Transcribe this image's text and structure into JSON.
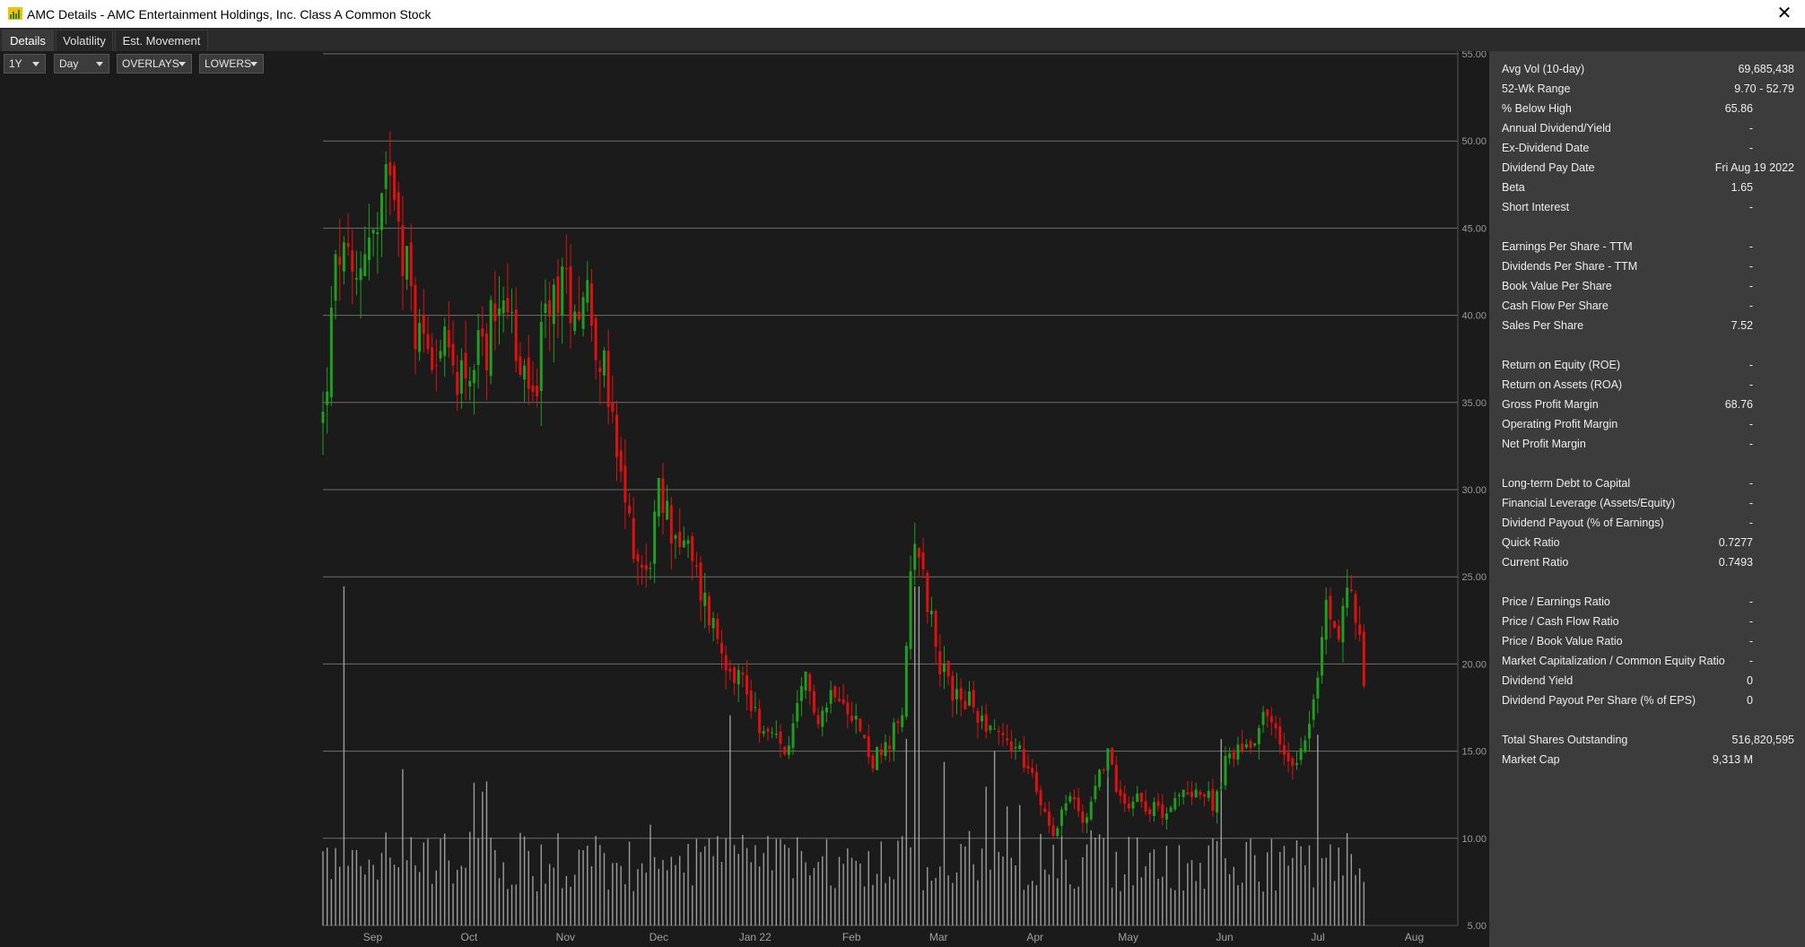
{
  "window": {
    "title": "AMC Details - AMC Entertainment Holdings, Inc. Class A Common Stock",
    "close_glyph": "✕",
    "icon": "chart-app-icon"
  },
  "tabs": [
    {
      "label": "Details",
      "active": true
    },
    {
      "label": "Volatility",
      "active": false
    },
    {
      "label": "Est. Movement",
      "active": false
    }
  ],
  "controls": {
    "range": "1Y",
    "interval": "Day",
    "overlays": "OVERLAYS",
    "lowers": "LOWERS"
  },
  "stats": [
    {
      "label": "Avg Vol (10-day)",
      "value": "69,685,438"
    },
    {
      "label": "52-Wk Range",
      "value": "9.70 - 52.79"
    },
    {
      "label": "% Below High",
      "value": "65.86"
    },
    {
      "label": "Annual Dividend/Yield",
      "value": "-"
    },
    {
      "label": "Ex-Dividend Date",
      "value": "-"
    },
    {
      "label": "Dividend Pay Date",
      "value": "Fri Aug 19 2022"
    },
    {
      "label": "Beta",
      "value": "1.65"
    },
    {
      "label": "Short Interest",
      "value": "-"
    },
    {
      "label": "Earnings Per Share - TTM",
      "value": "-"
    },
    {
      "label": "Dividends Per Share - TTM",
      "value": "-"
    },
    {
      "label": "Book Value Per Share",
      "value": "-"
    },
    {
      "label": "Cash Flow Per Share",
      "value": "-"
    },
    {
      "label": "Sales Per Share",
      "value": "7.52"
    },
    {
      "label": "Return on Equity (ROE)",
      "value": "-"
    },
    {
      "label": "Return on Assets (ROA)",
      "value": "-"
    },
    {
      "label": "Gross Profit Margin",
      "value": "68.76"
    },
    {
      "label": "Operating Profit Margin",
      "value": "-"
    },
    {
      "label": "Net Profit Margin",
      "value": "-"
    },
    {
      "label": "Long-term Debt to Capital",
      "value": "-"
    },
    {
      "label": "Financial Leverage (Assets/Equity)",
      "value": "-"
    },
    {
      "label": "Dividend Payout (% of Earnings)",
      "value": "-"
    },
    {
      "label": "Quick Ratio",
      "value": "0.7277"
    },
    {
      "label": "Current Ratio",
      "value": "0.7493"
    },
    {
      "label": "Price / Earnings Ratio",
      "value": "-"
    },
    {
      "label": "Price / Cash Flow Ratio",
      "value": "-"
    },
    {
      "label": "Price / Book Value Ratio",
      "value": "-"
    },
    {
      "label": "Market Capitalization / Common Equity Ratio",
      "value": "-"
    },
    {
      "label": "Dividend Yield",
      "value": "0"
    },
    {
      "label": "Dividend Payout Per Share (% of EPS)",
      "value": "0"
    },
    {
      "label": "Total Shares Outstanding",
      "value": "516,820,595"
    },
    {
      "label": "Market Cap",
      "value": "9,313 M"
    }
  ],
  "chart_data": {
    "type": "candlestick",
    "title": "",
    "ylim": [
      5,
      55
    ],
    "y_ticks": [
      "5.00",
      "10.00",
      "15.00",
      "20.00",
      "25.00",
      "30.00",
      "35.00",
      "40.00",
      "45.00",
      "50.00",
      "55.00"
    ],
    "y_tick_values": [
      5,
      10,
      15,
      20,
      25,
      30,
      35,
      40,
      45,
      50,
      55
    ],
    "x_tick_labels": [
      "Sep",
      "Oct",
      "Nov",
      "Dec",
      "Jan 22",
      "Feb",
      "Mar",
      "Apr",
      "May",
      "Jun",
      "Jul",
      "Aug"
    ],
    "x_tick_days": [
      16,
      47,
      78,
      108,
      139,
      170,
      198,
      229,
      259,
      290,
      320,
      351
    ],
    "day_range": [
      0,
      365
    ],
    "grid": "horizontal",
    "up_color": "#1f9e1f",
    "down_color": "#e01010",
    "volume_color": "#bdbdbd",
    "close_series": [
      {
        "day": 0,
        "close": 34.0
      },
      {
        "day": 5,
        "close": 44.0
      },
      {
        "day": 10,
        "close": 41.0
      },
      {
        "day": 14,
        "close": 45.0
      },
      {
        "day": 18,
        "close": 44.0
      },
      {
        "day": 22,
        "close": 50.0
      },
      {
        "day": 25,
        "close": 45.0
      },
      {
        "day": 30,
        "close": 39.0
      },
      {
        "day": 36,
        "close": 38.5
      },
      {
        "day": 42,
        "close": 37.0
      },
      {
        "day": 48,
        "close": 37.0
      },
      {
        "day": 52,
        "close": 38.0
      },
      {
        "day": 58,
        "close": 42.5
      },
      {
        "day": 63,
        "close": 36.5
      },
      {
        "day": 68,
        "close": 35.5
      },
      {
        "day": 72,
        "close": 40.0
      },
      {
        "day": 76,
        "close": 42.0
      },
      {
        "day": 80,
        "close": 41.0
      },
      {
        "day": 85,
        "close": 41.5
      },
      {
        "day": 90,
        "close": 37.0
      },
      {
        "day": 96,
        "close": 30.0
      },
      {
        "day": 100,
        "close": 27.0
      },
      {
        "day": 104,
        "close": 25.0
      },
      {
        "day": 108,
        "close": 29.5
      },
      {
        "day": 112,
        "close": 28.0
      },
      {
        "day": 117,
        "close": 26.5
      },
      {
        "day": 122,
        "close": 24.0
      },
      {
        "day": 128,
        "close": 21.0
      },
      {
        "day": 135,
        "close": 19.0
      },
      {
        "day": 142,
        "close": 16.0
      },
      {
        "day": 150,
        "close": 15.0
      },
      {
        "day": 155,
        "close": 19.0
      },
      {
        "day": 160,
        "close": 17.0
      },
      {
        "day": 165,
        "close": 19.0
      },
      {
        "day": 170,
        "close": 17.5
      },
      {
        "day": 176,
        "close": 14.5
      },
      {
        "day": 182,
        "close": 15.0
      },
      {
        "day": 187,
        "close": 18.0
      },
      {
        "day": 190,
        "close": 28.5
      },
      {
        "day": 194,
        "close": 24.0
      },
      {
        "day": 200,
        "close": 19.0
      },
      {
        "day": 206,
        "close": 18.0
      },
      {
        "day": 212,
        "close": 17.0
      },
      {
        "day": 218,
        "close": 16.0
      },
      {
        "day": 224,
        "close": 15.0
      },
      {
        "day": 230,
        "close": 12.5
      },
      {
        "day": 235,
        "close": 10.5
      },
      {
        "day": 240,
        "close": 12.5
      },
      {
        "day": 245,
        "close": 11.0
      },
      {
        "day": 252,
        "close": 15.0
      },
      {
        "day": 257,
        "close": 12.0
      },
      {
        "day": 262,
        "close": 12.5
      },
      {
        "day": 268,
        "close": 11.5
      },
      {
        "day": 274,
        "close": 12.0
      },
      {
        "day": 280,
        "close": 13.0
      },
      {
        "day": 286,
        "close": 12.0
      },
      {
        "day": 292,
        "close": 15.0
      },
      {
        "day": 298,
        "close": 15.5
      },
      {
        "day": 304,
        "close": 17.5
      },
      {
        "day": 308,
        "close": 15.0
      },
      {
        "day": 312,
        "close": 14.5
      },
      {
        "day": 316,
        "close": 16.0
      },
      {
        "day": 320,
        "close": 19.0
      },
      {
        "day": 323,
        "close": 24.0
      },
      {
        "day": 326,
        "close": 21.0
      },
      {
        "day": 329,
        "close": 24.5
      },
      {
        "day": 332,
        "close": 23.0
      },
      {
        "day": 334,
        "close": 20.0
      },
      {
        "day": 336,
        "close": 18.0
      }
    ],
    "volume_axis_max": 110
  }
}
